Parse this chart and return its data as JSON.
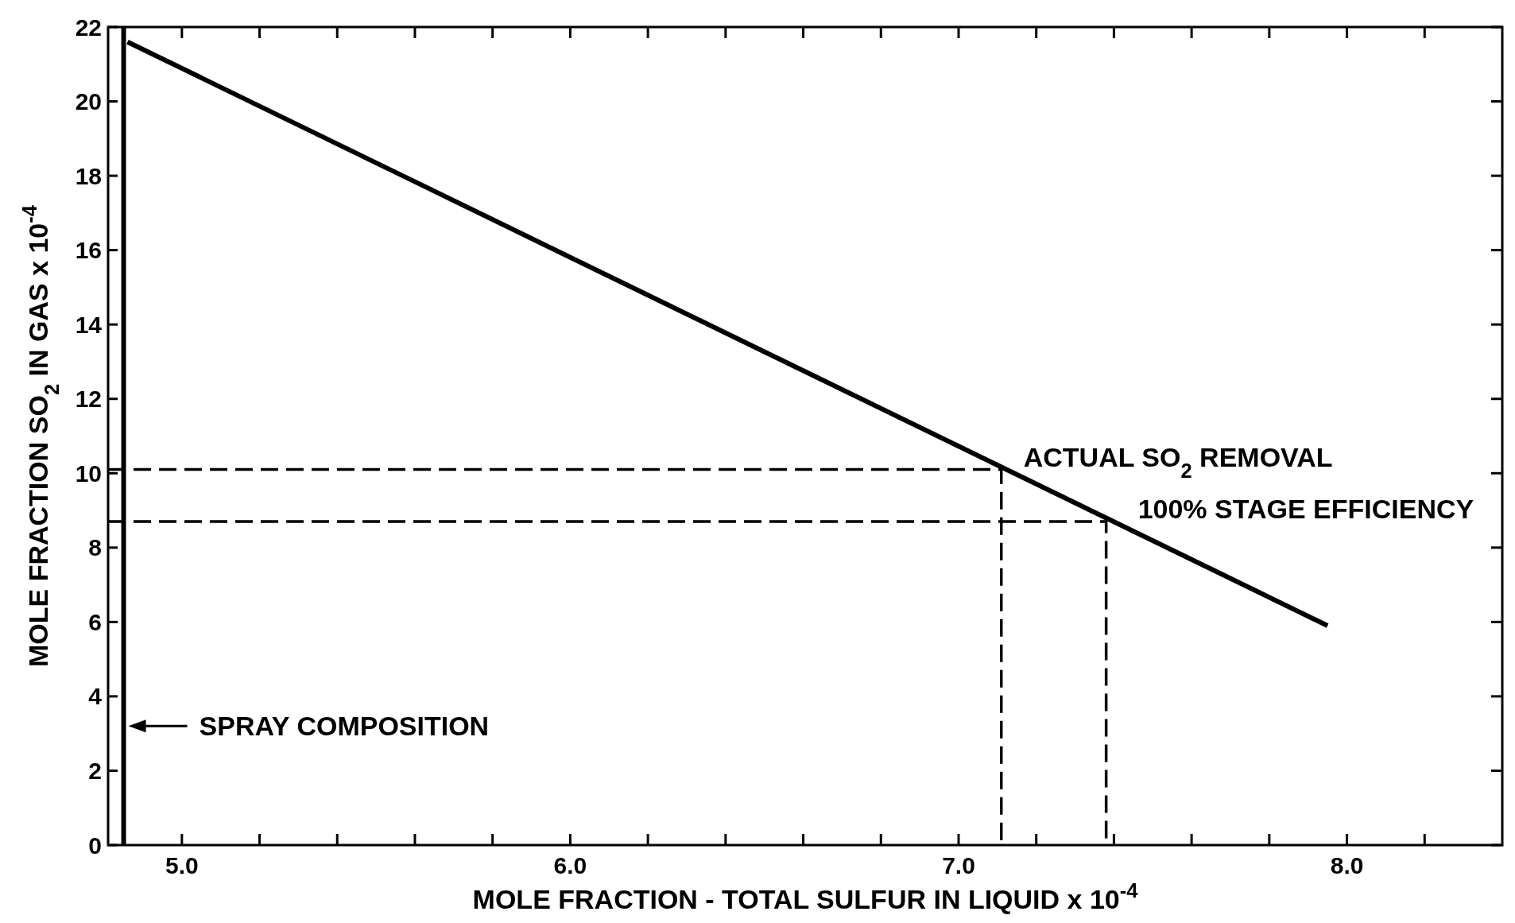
{
  "chart_data": {
    "type": "line",
    "xlabel": "MOLE FRACTION - TOTAL SULFUR IN LIQUID x 10$^{-4}$",
    "ylabel": "MOLE FRACTION SO$_{2}$ IN GAS x 10$^{-4}$",
    "series": [
      {
        "color": "#000000",
        "x": [
          4.86,
          7.95
        ],
        "values": [
          21.6,
          5.9
        ],
        "line_style": "solid"
      },
      {
        "color": "#000000",
        "x": [
          4.81,
          7.11,
          7.11
        ],
        "values": [
          10.1,
          10.1,
          0
        ],
        "line_style": "dashed"
      },
      {
        "color": "#000000",
        "x": [
          4.81,
          7.38,
          7.38
        ],
        "values": [
          8.7,
          8.7,
          0
        ],
        "line_style": "dashed"
      }
    ],
    "ref_lines": [
      {
        "axis": "x",
        "value": 4.85,
        "color": "#000000",
        "line_style": "solid"
      }
    ],
    "annotations": [
      {
        "text": "ACTUAL SO$_{2}$ REMOVAL",
        "x": 7.11,
        "y": 10.1
      },
      {
        "text": "100% STAGE EFFICIENCY",
        "x": 7.38,
        "y": 8.7
      },
      {
        "text": "SPRAY COMPOSITION",
        "x": 4.85,
        "y": 3.2
      }
    ],
    "xlim": [
      4.81,
      8.4
    ],
    "xticks": [
      {
        "value": 5,
        "label": "5.0"
      },
      {
        "value": 5.2,
        "label": null
      },
      {
        "value": 5.4,
        "label": null
      },
      {
        "value": 5.6,
        "label": null
      },
      {
        "value": 5.8,
        "label": null
      },
      {
        "value": 6,
        "label": "6.0"
      },
      {
        "value": 6.2,
        "label": null
      },
      {
        "value": 6.4,
        "label": null
      },
      {
        "value": 6.6,
        "label": null
      },
      {
        "value": 6.8,
        "label": null
      },
      {
        "value": 7,
        "label": "7.0"
      },
      {
        "value": 7.2,
        "label": null
      },
      {
        "value": 7.4,
        "label": null
      },
      {
        "value": 7.6,
        "label": null
      },
      {
        "value": 7.8,
        "label": null
      },
      {
        "value": 8,
        "label": "8.0"
      },
      {
        "value": 8.2,
        "label": null
      }
    ],
    "ylim": [
      0,
      22
    ],
    "yticks": [
      0,
      2,
      4,
      6,
      8,
      10,
      12,
      14,
      16,
      18,
      20,
      22
    ],
    "grid": false
  }
}
